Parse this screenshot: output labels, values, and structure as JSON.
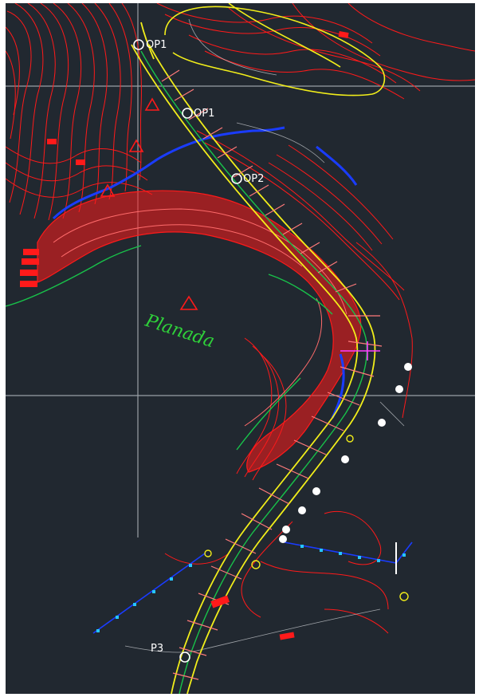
{
  "drawing": {
    "background": "#212830",
    "colors": {
      "contour": "#ff1a1a",
      "road_edge": "#f2ee1a",
      "centerline": "#18c24a",
      "grid": "#9aa0a6",
      "water": "#1a3cff",
      "station_text": "#ffb0b0",
      "marker": "#ffffff"
    },
    "labels": {
      "area": "Planada",
      "points": [
        "OP1",
        "OP1",
        "OP2",
        "P3"
      ]
    },
    "icons": [
      "survey-triangle-icon",
      "tree-symbol-icon",
      "sun-symbol-icon"
    ]
  }
}
